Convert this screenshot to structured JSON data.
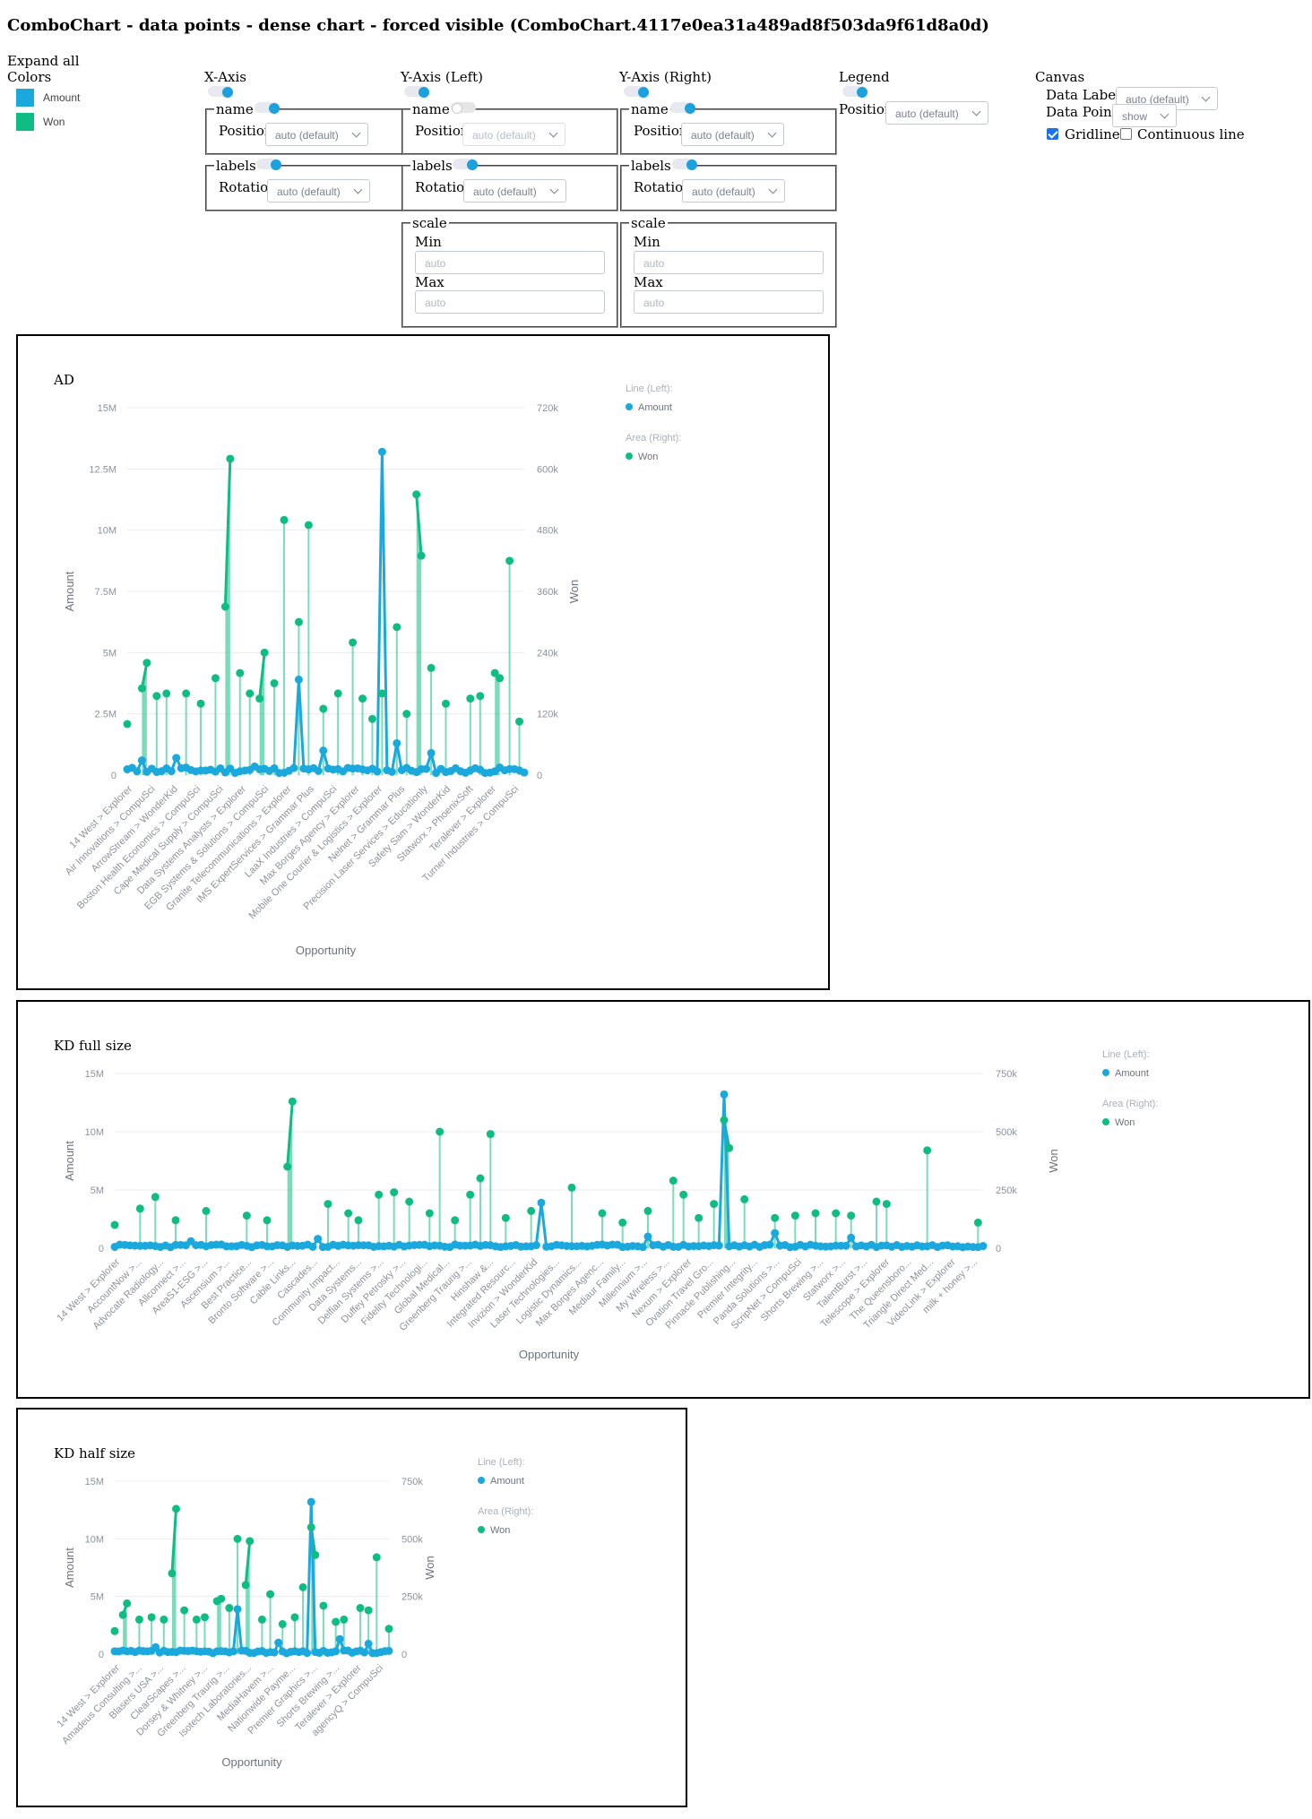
{
  "page_title": "ComboChart - data points - dense chart - forced visible (ComboChart.4117e0ea31a489ad8f503da9f61d8a0d)",
  "controls": {
    "expand_all": "Expand all",
    "colors_heading": "Colors",
    "colors": [
      {
        "label": "Amount",
        "color": "#1aa8dd"
      },
      {
        "label": "Won",
        "color": "#0fbd84"
      }
    ],
    "x_axis": {
      "heading": "X-Axis",
      "name_legend": "name",
      "position_label": "Position",
      "position_value": "auto (default)",
      "labels_legend": "labels",
      "rotation_label": "Rotation",
      "rotation_value": "auto (default)"
    },
    "y_left": {
      "heading": "Y-Axis (Left)",
      "name_legend": "name",
      "position_label": "Position",
      "position_value": "auto (default)",
      "labels_legend": "labels",
      "rotation_label": "Rotation",
      "rotation_value": "auto (default)",
      "scale_legend": "scale",
      "min_label": "Min",
      "min_placeholder": "auto",
      "max_label": "Max",
      "max_placeholder": "auto"
    },
    "y_right": {
      "heading": "Y-Axis (Right)",
      "name_legend": "name",
      "position_label": "Position",
      "position_value": "auto (default)",
      "labels_legend": "labels",
      "rotation_label": "Rotation",
      "rotation_value": "auto (default)",
      "scale_legend": "scale",
      "min_label": "Min",
      "min_placeholder": "auto",
      "max_label": "Max",
      "max_placeholder": "auto"
    },
    "legend": {
      "heading": "Legend",
      "position_label": "Position",
      "position_value": "auto (default)"
    },
    "canvas": {
      "heading": "Canvas",
      "data_labels_label": "Data Labels",
      "data_labels_value": "auto (default)",
      "data_points_label": "Data Points",
      "data_points_value": "show",
      "gridline_label": "Gridline",
      "gridline_checked": true,
      "continuous_line_label": "Continuous line",
      "continuous_line_checked": false
    }
  },
  "chart_data": [
    {
      "type": "line+area",
      "title": "AD",
      "xlabel": "Opportunity",
      "ylabel_left": "Amount",
      "ylabel_right": "Won",
      "ylim_left": [
        0,
        15000000
      ],
      "ylim_right": [
        0,
        720000
      ],
      "yticks_left": [
        "0",
        "2.5M",
        "5M",
        "7.5M",
        "10M",
        "12.5M",
        "15M"
      ],
      "yticks_right": [
        "0",
        "120k",
        "240k",
        "360k",
        "480k",
        "600k",
        "720k"
      ],
      "x_tick_labels": [
        "14 West > Explorer",
        "Air Innovations > CompuSci",
        "ArrowStream > WonderKid",
        "Boston Health Economics > CompuSci",
        "Cape Medical Supply > CompuSci",
        "Data Systems Analysts > Explorer",
        "EGB Systems & Solutions > CompuSci",
        "Granite Telecommunications > Explorer",
        "IMS ExpertServices > Grammar Plus",
        "LaaX Industries > CompuSci",
        "Max Borges Agency > Explorer",
        "Mobile One Courier & Logistics > Explorer",
        "Nelnet > Grammar Plus",
        "Precision Laser Services > Educationly",
        "Safety Sam > WonderKid",
        "Statworx > PhoenixSoft",
        "Teralever > Explorer",
        "Turner Industries > CompuSci"
      ],
      "grid": true,
      "legend_position": "right",
      "legend": [
        {
          "group": "Line (Left):",
          "name": "Amount",
          "color": "#1aa8dd"
        },
        {
          "group": "Area (Right):",
          "name": "Won",
          "color": "#0fbd84"
        }
      ],
      "series_won_peaks_right": [
        [
          0,
          100000
        ],
        [
          3,
          170000
        ],
        [
          4,
          220000
        ],
        [
          6,
          155000
        ],
        [
          8,
          160000
        ],
        [
          12,
          160000
        ],
        [
          15,
          140000
        ],
        [
          18,
          190000
        ],
        [
          20,
          330000
        ],
        [
          21,
          620000
        ],
        [
          23,
          200000
        ],
        [
          25,
          160000
        ],
        [
          27,
          150000
        ],
        [
          28,
          240000
        ],
        [
          30,
          180000
        ],
        [
          32,
          500000
        ],
        [
          35,
          300000
        ],
        [
          37,
          490000
        ],
        [
          40,
          130000
        ],
        [
          43,
          160000
        ],
        [
          46,
          260000
        ],
        [
          48,
          150000
        ],
        [
          50,
          110000
        ],
        [
          52,
          160000
        ],
        [
          55,
          290000
        ],
        [
          57,
          120000
        ],
        [
          59,
          550000
        ],
        [
          60,
          430000
        ],
        [
          62,
          210000
        ],
        [
          65,
          140000
        ],
        [
          70,
          150000
        ],
        [
          72,
          155000
        ],
        [
          75,
          200000
        ],
        [
          76,
          190000
        ],
        [
          78,
          420000
        ],
        [
          80,
          105000
        ]
      ],
      "series_amount_peaks_left": [
        [
          3,
          600000
        ],
        [
          10,
          700000
        ],
        [
          26,
          350000
        ],
        [
          35,
          3900000
        ],
        [
          40,
          1000000
        ],
        [
          52,
          13200000
        ],
        [
          55,
          1300000
        ],
        [
          62,
          900000
        ]
      ]
    },
    {
      "type": "line+area",
      "title": "KD full size",
      "xlabel": "Opportunity",
      "ylabel_left": "Amount",
      "ylabel_right": "Won",
      "ylim_left": [
        0,
        15000000
      ],
      "ylim_right": [
        0,
        750000
      ],
      "yticks_left": [
        "0",
        "5M",
        "10M",
        "15M"
      ],
      "yticks_right": [
        "0",
        "250k",
        "500k",
        "750k"
      ],
      "x_tick_labels": [
        "14 West > Explorer",
        "AccountNow >...",
        "Advocate Radiology...",
        "Allconnect >...",
        "AreaS1-ESG >...",
        "Ascensium >...",
        "Best Practice...",
        "Bronto Software >...",
        "Cable Links...",
        "Cascades...",
        "Community Impact...",
        "Data Systems...",
        "Delfian Systems >...",
        "Duffey Petrosky >...",
        "Fidelity Technologi...",
        "Global Medical...",
        "Greenberg Traurig >...",
        "Hinshaw &...",
        "Integrated Resourc...",
        "Invizion > WonderKid",
        "Laser Technologies...",
        "Logistic Dynamics...",
        "Max Borges Agenc...",
        "Mediaur Family...",
        "Millennium >...",
        "My Wireless >...",
        "Nexum > Explorer",
        "Ovation Travel Gro...",
        "Pinnacle Publishing...",
        "Premier Integrity...",
        "Panda Solutions >...",
        "ScripNet > CompuSci",
        "Shorts Brewing >...",
        "Statworx >...",
        "TalentBurst >...",
        "Telescope > Explorer",
        "The Queensboro...",
        "Triangle Direct Med...",
        "VideoLink > Explorer",
        "milk + honey >..."
      ],
      "grid": true,
      "legend_position": "right",
      "legend": [
        {
          "group": "Line (Left):",
          "name": "Amount",
          "color": "#1aa8dd"
        },
        {
          "group": "Area (Right):",
          "name": "Won",
          "color": "#0fbd84"
        }
      ],
      "series_won_peaks_right": [
        [
          0,
          100000
        ],
        [
          5,
          170000
        ],
        [
          8,
          220000
        ],
        [
          12,
          120000
        ],
        [
          18,
          160000
        ],
        [
          26,
          140000
        ],
        [
          30,
          120000
        ],
        [
          34,
          350000
        ],
        [
          35,
          630000
        ],
        [
          42,
          190000
        ],
        [
          46,
          150000
        ],
        [
          48,
          120000
        ],
        [
          52,
          230000
        ],
        [
          55,
          240000
        ],
        [
          58,
          200000
        ],
        [
          62,
          150000
        ],
        [
          64,
          500000
        ],
        [
          67,
          120000
        ],
        [
          70,
          230000
        ],
        [
          72,
          300000
        ],
        [
          74,
          490000
        ],
        [
          77,
          130000
        ],
        [
          82,
          160000
        ],
        [
          90,
          260000
        ],
        [
          96,
          150000
        ],
        [
          100,
          110000
        ],
        [
          105,
          160000
        ],
        [
          110,
          290000
        ],
        [
          112,
          230000
        ],
        [
          115,
          130000
        ],
        [
          118,
          190000
        ],
        [
          120,
          550000
        ],
        [
          121,
          430000
        ],
        [
          124,
          210000
        ],
        [
          130,
          130000
        ],
        [
          134,
          140000
        ],
        [
          138,
          150000
        ],
        [
          142,
          150000
        ],
        [
          145,
          140000
        ],
        [
          150,
          200000
        ],
        [
          152,
          190000
        ],
        [
          160,
          420000
        ],
        [
          170,
          110000
        ]
      ],
      "series_amount_peaks_left": [
        [
          15,
          600000
        ],
        [
          40,
          800000
        ],
        [
          84,
          3900000
        ],
        [
          105,
          1000000
        ],
        [
          120,
          13200000
        ],
        [
          130,
          1300000
        ],
        [
          145,
          900000
        ]
      ]
    },
    {
      "type": "line+area",
      "title": "KD half size",
      "xlabel": "Opportunity",
      "ylabel_left": "Amount",
      "ylabel_right": "Won",
      "ylim_left": [
        0,
        15000000
      ],
      "ylim_right": [
        0,
        750000
      ],
      "yticks_left": [
        "0",
        "5M",
        "10M",
        "15M"
      ],
      "yticks_right": [
        "0",
        "250k",
        "500k",
        "750k"
      ],
      "x_tick_labels": [
        "14 West > Explorer",
        "Amadeus Consulting >...",
        "Blasers USA >...",
        "ClearScapes >...",
        "Dorsey & Whitney >...",
        "Greenberg Traurig >...",
        "Isotech Laboratories...",
        "MediaHavem >...",
        "Nationwide Payme...",
        "Premier Graphics >...",
        "Shorts Brewing >...",
        "Teralever > Explorer",
        "agencyQ > CompuSci"
      ],
      "grid": true,
      "legend_position": "right",
      "legend": [
        {
          "group": "Line (Left):",
          "name": "Amount",
          "color": "#1aa8dd"
        },
        {
          "group": "Area (Right):",
          "name": "Won",
          "color": "#0fbd84"
        }
      ],
      "series_won_peaks_right": [
        [
          0,
          100000
        ],
        [
          2,
          170000
        ],
        [
          3,
          220000
        ],
        [
          6,
          150000
        ],
        [
          9,
          160000
        ],
        [
          12,
          150000
        ],
        [
          14,
          350000
        ],
        [
          15,
          630000
        ],
        [
          17,
          190000
        ],
        [
          20,
          150000
        ],
        [
          22,
          160000
        ],
        [
          25,
          230000
        ],
        [
          26,
          240000
        ],
        [
          28,
          200000
        ],
        [
          30,
          500000
        ],
        [
          32,
          300000
        ],
        [
          33,
          490000
        ],
        [
          36,
          150000
        ],
        [
          38,
          260000
        ],
        [
          41,
          130000
        ],
        [
          44,
          160000
        ],
        [
          46,
          290000
        ],
        [
          48,
          550000
        ],
        [
          49,
          430000
        ],
        [
          51,
          210000
        ],
        [
          54,
          140000
        ],
        [
          56,
          150000
        ],
        [
          60,
          200000
        ],
        [
          62,
          190000
        ],
        [
          64,
          420000
        ],
        [
          67,
          110000
        ]
      ],
      "series_amount_peaks_left": [
        [
          10,
          600000
        ],
        [
          30,
          3900000
        ],
        [
          40,
          1000000
        ],
        [
          48,
          13200000
        ],
        [
          55,
          1300000
        ],
        [
          62,
          900000
        ]
      ]
    }
  ]
}
